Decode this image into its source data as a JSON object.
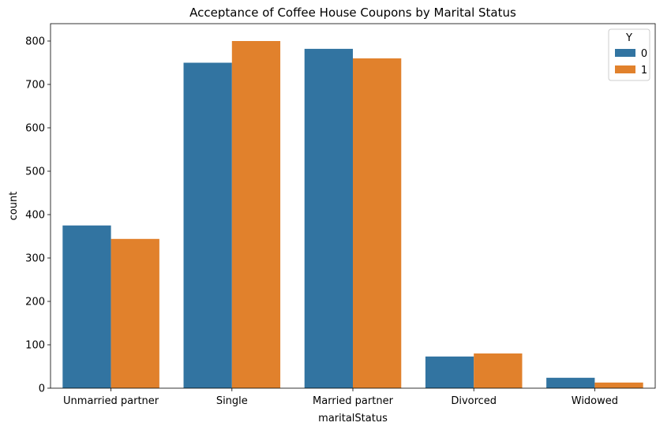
{
  "chart_data": {
    "type": "bar",
    "title": "Acceptance of Coffee House Coupons by Marital Status",
    "xlabel": "maritalStatus",
    "ylabel": "count",
    "categories": [
      "Unmarried partner",
      "Single",
      "Married partner",
      "Divorced",
      "Widowed"
    ],
    "series": [
      {
        "name": "0",
        "color": "#3274a1",
        "values": [
          375,
          750,
          782,
          73,
          24
        ]
      },
      {
        "name": "1",
        "color": "#e1812c",
        "values": [
          344,
          800,
          760,
          80,
          13
        ]
      }
    ],
    "ylim": [
      0,
      840
    ],
    "yticks": [
      0,
      100,
      200,
      300,
      400,
      500,
      600,
      700,
      800
    ],
    "legend": {
      "title": "Y",
      "placement": "top-right"
    },
    "grid": false
  }
}
